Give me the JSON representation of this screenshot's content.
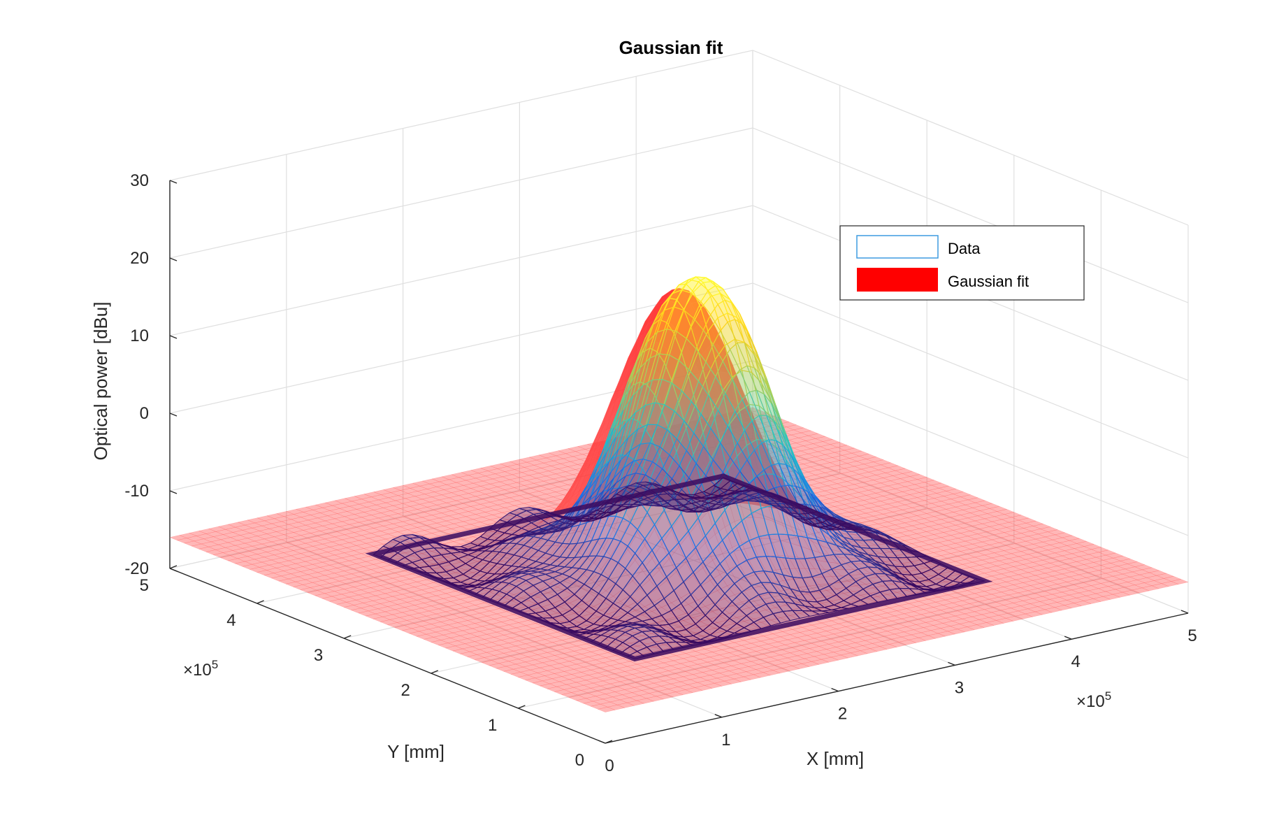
{
  "chart_data": {
    "type": "surface3d",
    "title": "Gaussian fit",
    "xlabel": "X [mm]",
    "ylabel": "Y [mm]",
    "zlabel": "Optical power [dBu]",
    "x_ticks": [
      "0",
      "1",
      "2",
      "3",
      "4",
      "5"
    ],
    "y_ticks": [
      "0",
      "1",
      "2",
      "3",
      "4",
      "5"
    ],
    "z_ticks": [
      "-20",
      "-10",
      "0",
      "10",
      "20",
      "30"
    ],
    "x_exponent": "×10",
    "x_exponent_power": "5",
    "y_exponent": "×10",
    "y_exponent_power": "5",
    "xlim": [
      0,
      500000
    ],
    "ylim": [
      0,
      500000
    ],
    "zlim": [
      -20,
      30
    ],
    "grid": true,
    "legend_position": "top-right",
    "legend": [
      {
        "label": "Data",
        "color": "#3d9be0",
        "style": "mesh"
      },
      {
        "label": "Gaussian fit",
        "color": "#ff0000",
        "style": "surface"
      }
    ],
    "gaussian_fit": {
      "peak_dBu": 19,
      "baseline_dBu": -16,
      "center_x": 250000,
      "center_y": 250000,
      "sigma": 45000,
      "extent": [
        0,
        500000
      ]
    },
    "data": {
      "peak_dBu": 21,
      "floor_dBu": -17,
      "x_range": [
        100000,
        400000
      ],
      "y_range": [
        100000,
        400000
      ],
      "colormap": [
        "#3a0a60",
        "#1f6fe8",
        "#22c2c8",
        "#a0d060",
        "#ffd21a",
        "#ffff30"
      ]
    }
  }
}
